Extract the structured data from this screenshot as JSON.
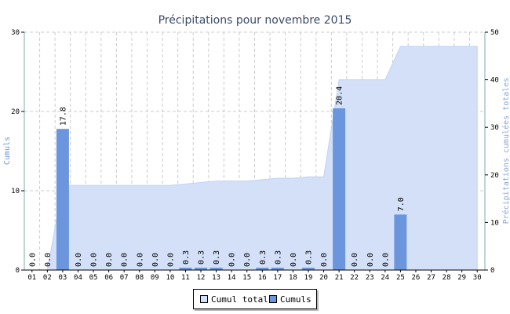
{
  "chart_data": {
    "type": "bar",
    "title": "Précipitations pour novembre 2015",
    "ylabel_left": "Cumuls",
    "ylabel_right": "Précipitations cumulées totales",
    "ylim_left": [
      0,
      30
    ],
    "ylim_right": [
      0,
      50
    ],
    "yticks_left": [
      "0",
      "10",
      "20",
      "30"
    ],
    "yticks_right": [
      "0",
      "10",
      "20",
      "30",
      "40",
      "50"
    ],
    "categories": [
      "01",
      "02",
      "03",
      "04",
      "05",
      "06",
      "07",
      "08",
      "09",
      "10",
      "11",
      "12",
      "13",
      "14",
      "15",
      "16",
      "17",
      "18",
      "19",
      "20",
      "21",
      "22",
      "23",
      "24",
      "25",
      "26",
      "27",
      "28",
      "29",
      "30"
    ],
    "series": [
      {
        "name": "Cumuls",
        "axis": "left",
        "kind": "bar",
        "color": "#6b96de",
        "values": [
          0.0,
          0.0,
          17.8,
          0.0,
          0.0,
          0.0,
          0.0,
          0.0,
          0.0,
          0.0,
          0.3,
          0.3,
          0.3,
          0.0,
          0.0,
          0.3,
          0.3,
          0.0,
          0.3,
          0.0,
          20.4,
          0.0,
          0.0,
          0.0,
          7.0,
          null,
          null,
          null,
          null,
          null
        ],
        "labels": [
          "0.0",
          "0.0",
          "17.8",
          "0.0",
          "0.0",
          "0.0",
          "0.0",
          "0.0",
          "0.0",
          "0.0",
          "0.3",
          "0.3",
          "0.3",
          "0.0",
          "0.0",
          "0.3",
          "0.3",
          "0.0",
          "0.3",
          "0.0",
          "20.4",
          "0.0",
          "0.0",
          "0.0",
          "7.0",
          "",
          "",
          "",
          "",
          ""
        ]
      },
      {
        "name": "Cumul total",
        "axis": "right",
        "kind": "area",
        "color": "#d3e0f8",
        "values": [
          0.0,
          0.0,
          17.8,
          17.8,
          17.8,
          17.8,
          17.8,
          17.8,
          17.8,
          17.8,
          18.1,
          18.4,
          18.7,
          18.7,
          18.7,
          19.0,
          19.3,
          19.3,
          19.6,
          19.6,
          40.0,
          40.0,
          40.0,
          40.0,
          47.0,
          47.0,
          47.0,
          47.0,
          47.0,
          47.0
        ]
      }
    ],
    "grid": true,
    "legend_position": "bottom-center"
  }
}
